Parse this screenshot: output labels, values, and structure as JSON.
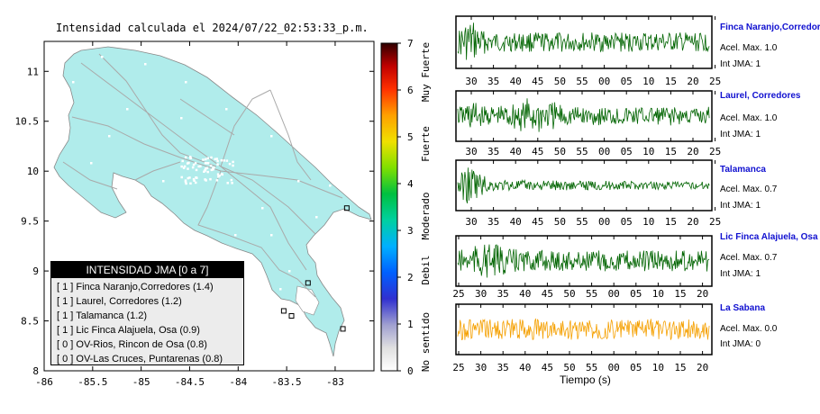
{
  "map": {
    "title": "Intensidad calculada el 2024/07/22_02:53:33_p.m.",
    "x_ticks": [
      "-86",
      "-85.5",
      "-85",
      "-84.5",
      "-84",
      "-83.5",
      "-83"
    ],
    "y_ticks": [
      "11",
      "10.5",
      "10",
      "9.5",
      "9",
      "8.5",
      "8"
    ]
  },
  "colorbar": {
    "ticks": [
      "7",
      "6",
      "5",
      "4",
      "3",
      "2",
      "1",
      "0"
    ],
    "labels": [
      "Muy Fuerte",
      "Fuerte",
      "Moderado",
      "Debil",
      "No sentido"
    ]
  },
  "legend": {
    "title": "INTENSIDAD JMA [0 a 7]",
    "entries": [
      "[ 1 ]  Finca Naranjo,Corredores (1.4)",
      "[ 1 ]  Laurel, Corredores (1.2)",
      "[ 1 ]  Talamanca (1.2)",
      "[ 1 ]  Lic Finca Alajuela, Osa (0.9)",
      "[ 0 ]  OV-Rios, Rincon de Osa (0.8)",
      "[ 0 ]  OV-Las Cruces, Puntarenas (0.8)"
    ]
  },
  "chart_data": [
    {
      "type": "map",
      "title": "Intensidad calculada el 2024/07/22_02:53:33_p.m.",
      "xlim": [
        -86,
        -82.6
      ],
      "ylim": [
        8,
        11.3
      ],
      "colorbar_range": [
        0,
        7
      ],
      "stations_marked": [
        {
          "lon": -83.28,
          "lat": 8.88
        },
        {
          "lon": -83.53,
          "lat": 8.6
        },
        {
          "lon": -83.45,
          "lat": 8.55
        },
        {
          "lon": -82.88,
          "lat": 9.63
        },
        {
          "lon": -82.92,
          "lat": 8.42
        }
      ]
    },
    {
      "type": "line",
      "xlabel": "Tiempo (s)",
      "series": [
        {
          "name": "Finca Naranjo,Corredores",
          "acel_label": "Acel. Max. 1.0",
          "jma_label": "Int JMA: 1",
          "color": "#006400",
          "ticks": [
            "30",
            "35",
            "40",
            "45",
            "50",
            "55",
            "00",
            "05",
            "10",
            "15",
            "20",
            "25"
          ],
          "burst": 0.05
        },
        {
          "name": "Laurel, Corredores",
          "acel_label": "Acel. Max. 1.0",
          "jma_label": "Int JMA: 1",
          "color": "#006400",
          "ticks": [
            "30",
            "35",
            "40",
            "45",
            "50",
            "55",
            "00",
            "05",
            "10",
            "15",
            "20",
            "25"
          ],
          "burst": 0.12
        },
        {
          "name": "Talamanca",
          "acel_label": "Acel. Max. 0.7",
          "jma_label": "Int JMA: 1",
          "color": "#006400",
          "ticks": [
            "30",
            "35",
            "40",
            "45",
            "50",
            "55",
            "00",
            "05",
            "10",
            "15",
            "20",
            "25"
          ],
          "burst": 0.05
        },
        {
          "name": "Lic Finca Alajuela, Osa",
          "acel_label": "Acel. Max. 0.7",
          "jma_label": "Int JMA: 1",
          "color": "#006400",
          "ticks": [
            "25",
            "30",
            "35",
            "40",
            "45",
            "50",
            "55",
            "00",
            "05",
            "10",
            "15",
            "20"
          ],
          "burst": 0.1
        },
        {
          "name": "La Sabana",
          "acel_label": "Acel. Max. 0.0",
          "jma_label": "Int JMA: 0",
          "color": "#f5a000",
          "ticks": [
            "25",
            "30",
            "35",
            "40",
            "45",
            "50",
            "55",
            "00",
            "05",
            "10",
            "15",
            "20"
          ],
          "burst": 0.0
        }
      ]
    }
  ]
}
